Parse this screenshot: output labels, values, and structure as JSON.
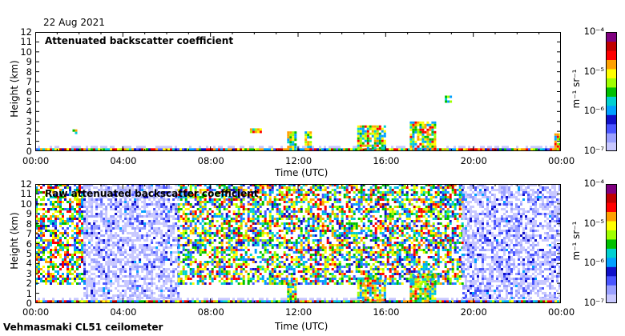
{
  "date": "22 Aug 2021",
  "footer": "Vehmasmaki CL51 ceilometer",
  "chart_data": [
    {
      "type": "heatmap",
      "title": "Attenuated backscatter coefficient",
      "xlabel": "Time (UTC)",
      "ylabel": "Height (km)",
      "xlim": [
        "00:00",
        "24:00"
      ],
      "ylim": [
        0,
        12
      ],
      "x_ticks": [
        "00:00",
        "04:00",
        "08:00",
        "12:00",
        "16:00",
        "20:00",
        "00:00"
      ],
      "y_ticks": [
        "0",
        "1",
        "2",
        "3",
        "4",
        "5",
        "6",
        "7",
        "8",
        "9",
        "10",
        "11",
        "12"
      ],
      "colorbar": {
        "label": "m⁻¹ sr⁻¹",
        "scale": "log",
        "min": 1e-07,
        "max": 0.0001,
        "ticks": [
          "10⁻⁷",
          "10⁻⁶",
          "10⁻⁵",
          "10⁻⁴"
        ]
      },
      "features": [
        {
          "t0": 0.0,
          "t1": 24.0,
          "h0": 0.0,
          "h1": 0.3,
          "kind": "surface"
        },
        {
          "t0": 1.7,
          "t1": 1.9,
          "h0": 1.9,
          "h1": 2.2,
          "kind": "cloud"
        },
        {
          "t0": 9.8,
          "t1": 10.3,
          "h0": 2.0,
          "h1": 2.3,
          "kind": "cloud"
        },
        {
          "t0": 11.5,
          "t1": 11.9,
          "h0": 0.2,
          "h1": 2.0,
          "kind": "cloud"
        },
        {
          "t0": 12.3,
          "t1": 12.6,
          "h0": 0.3,
          "h1": 2.0,
          "kind": "cloud"
        },
        {
          "t0": 14.7,
          "t1": 16.0,
          "h0": 0.1,
          "h1": 2.6,
          "kind": "cloud"
        },
        {
          "t0": 17.1,
          "t1": 18.3,
          "h0": 0.1,
          "h1": 3.0,
          "kind": "cloud"
        },
        {
          "t0": 18.7,
          "t1": 18.95,
          "h0": 5.0,
          "h1": 5.6,
          "kind": "cloud"
        },
        {
          "t0": 23.7,
          "t1": 24.0,
          "h0": 0.1,
          "h1": 1.8,
          "kind": "cloud"
        }
      ]
    },
    {
      "type": "heatmap",
      "title": "Raw attenuated backscatter coefficient",
      "xlabel": "Time (UTC)",
      "ylabel": "Height (km)",
      "xlim": [
        "00:00",
        "24:00"
      ],
      "ylim": [
        0,
        12
      ],
      "x_ticks": [
        "00:00",
        "04:00",
        "08:00",
        "12:00",
        "16:00",
        "20:00",
        "00:00"
      ],
      "y_ticks": [
        "0",
        "1",
        "2",
        "3",
        "4",
        "5",
        "6",
        "7",
        "8",
        "9",
        "10",
        "11",
        "12"
      ],
      "colorbar": {
        "label": "m⁻¹ sr⁻¹",
        "scale": "log",
        "min": 1e-07,
        "max": 0.0001,
        "ticks": [
          "10⁻⁷",
          "10⁻⁶",
          "10⁻⁵",
          "10⁻⁴"
        ]
      },
      "features": [
        {
          "t0": 0.0,
          "t1": 2.2,
          "h0": 2.0,
          "h1": 12.0,
          "kind": "noise-high"
        },
        {
          "t0": 2.2,
          "t1": 6.5,
          "h0": 0.5,
          "h1": 12.0,
          "kind": "noise-low"
        },
        {
          "t0": 6.5,
          "t1": 19.5,
          "h0": 2.0,
          "h1": 12.0,
          "kind": "noise-high"
        },
        {
          "t0": 19.5,
          "t1": 24.0,
          "h0": 0.5,
          "h1": 12.0,
          "kind": "noise-low"
        },
        {
          "t0": 0.0,
          "t1": 24.0,
          "h0": 0.0,
          "h1": 0.3,
          "kind": "surface"
        },
        {
          "t0": 11.5,
          "t1": 11.9,
          "h0": 0.2,
          "h1": 2.0,
          "kind": "cloud"
        },
        {
          "t0": 14.7,
          "t1": 16.0,
          "h0": 0.1,
          "h1": 2.6,
          "kind": "cloud"
        },
        {
          "t0": 17.1,
          "t1": 18.3,
          "h0": 0.1,
          "h1": 3.0,
          "kind": "cloud"
        }
      ]
    }
  ]
}
